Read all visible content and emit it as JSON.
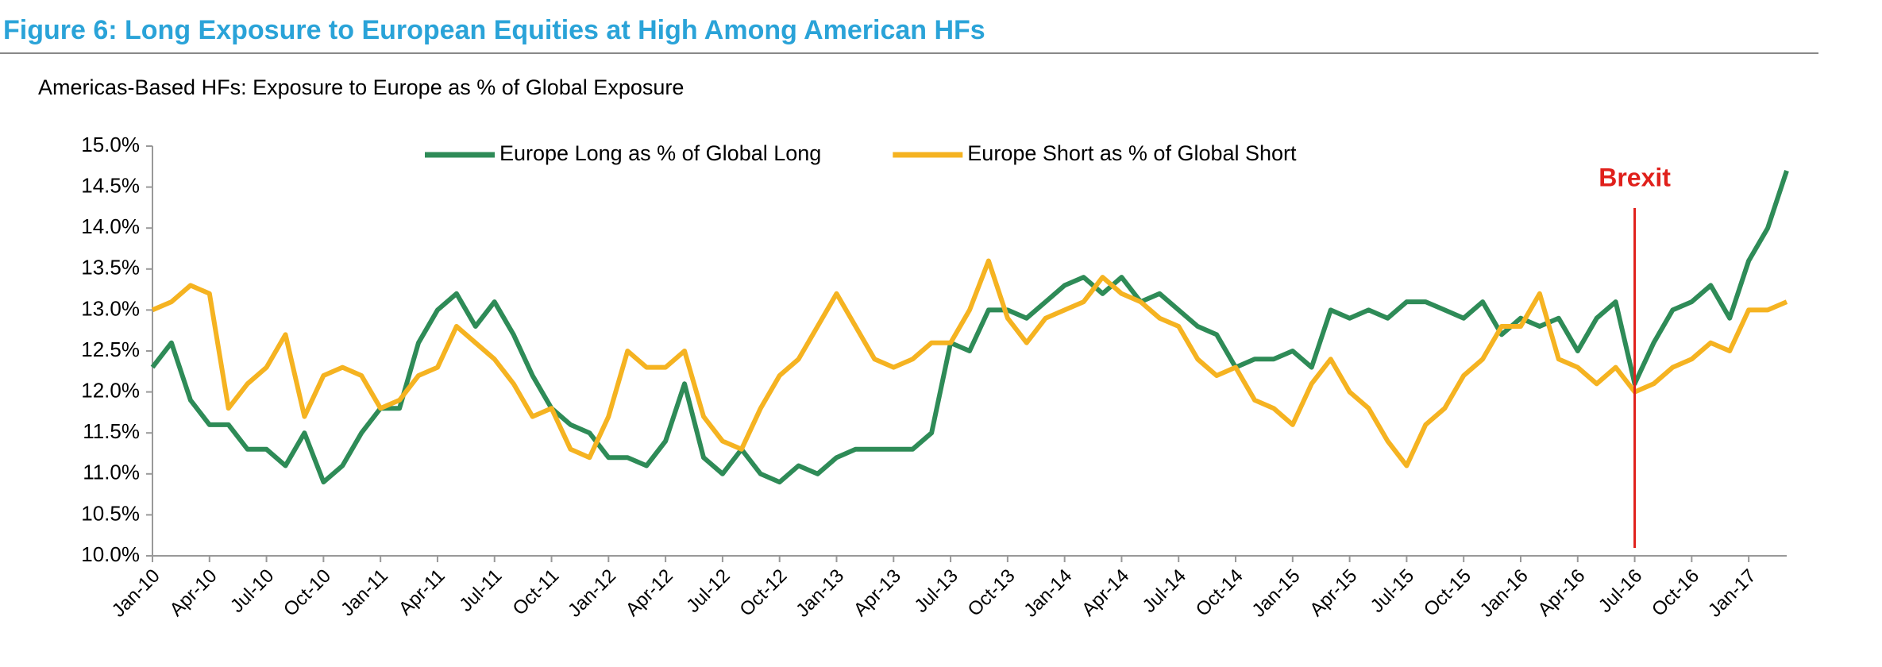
{
  "chart_data": {
    "type": "line",
    "title": "Figure 6: Long Exposure to European Equities at High Among American HFs",
    "subtitle": "Americas-Based HFs: Exposure to Europe as % of Global Exposure",
    "categories": [
      "Jan-10",
      null,
      null,
      "Apr-10",
      null,
      null,
      "Jul-10",
      null,
      null,
      "Oct-10",
      null,
      null,
      "Jan-11",
      null,
      null,
      "Apr-11",
      null,
      null,
      "Jul-11",
      null,
      null,
      "Oct-11",
      null,
      null,
      "Jan-12",
      null,
      null,
      "Apr-12",
      null,
      null,
      "Jul-12",
      null,
      null,
      "Oct-12",
      null,
      null,
      "Jan-13",
      null,
      null,
      "Apr-13",
      null,
      null,
      "Jul-13",
      null,
      null,
      "Oct-13",
      null,
      null,
      "Jan-14",
      null,
      null,
      "Apr-14",
      null,
      null,
      "Jul-14",
      null,
      null,
      "Oct-14",
      null,
      null,
      "Jan-15",
      null,
      null,
      "Apr-15",
      null,
      null,
      "Jul-15",
      null,
      null,
      "Oct-15",
      null,
      null,
      "Jan-16",
      null,
      null,
      "Apr-16",
      null,
      null,
      "Jul-16",
      null,
      null,
      "Oct-16",
      null,
      null,
      "Jan-17",
      null,
      null
    ],
    "series": [
      {
        "name": "Europe Long as % of Global Long",
        "color": "#2e8b57",
        "values": [
          12.3,
          12.6,
          11.9,
          11.6,
          11.6,
          11.3,
          11.3,
          11.1,
          11.5,
          10.9,
          11.1,
          11.5,
          11.8,
          11.8,
          12.6,
          13.0,
          13.2,
          12.8,
          13.1,
          12.7,
          12.2,
          11.8,
          11.6,
          11.5,
          11.2,
          11.2,
          11.1,
          11.4,
          12.1,
          11.2,
          11.0,
          11.3,
          11.0,
          10.9,
          11.1,
          11.0,
          11.2,
          11.3,
          11.3,
          11.3,
          11.3,
          11.5,
          12.6,
          12.5,
          13.0,
          13.0,
          12.9,
          13.1,
          13.3,
          13.4,
          13.2,
          13.4,
          13.1,
          13.2,
          13.0,
          12.8,
          12.7,
          12.3,
          12.4,
          12.4,
          12.5,
          12.3,
          13.0,
          12.9,
          13.0,
          12.9,
          13.1,
          13.1,
          13.0,
          12.9,
          13.1,
          12.7,
          12.9,
          12.8,
          12.9,
          12.5,
          12.9,
          13.1,
          12.1,
          12.6,
          13.0,
          13.1,
          13.3,
          12.9,
          13.6,
          14.0,
          14.7
        ]
      },
      {
        "name": "Europe Short as % of Global Short",
        "color": "#f5b321",
        "values": [
          13.0,
          13.1,
          13.3,
          13.2,
          11.8,
          12.1,
          12.3,
          12.7,
          11.7,
          12.2,
          12.3,
          12.2,
          11.8,
          11.9,
          12.2,
          12.3,
          12.8,
          12.6,
          12.4,
          12.1,
          11.7,
          11.8,
          11.3,
          11.2,
          11.7,
          12.5,
          12.3,
          12.3,
          12.5,
          11.7,
          11.4,
          11.3,
          11.8,
          12.2,
          12.4,
          12.8,
          13.2,
          12.8,
          12.4,
          12.3,
          12.4,
          12.6,
          12.6,
          13.0,
          13.6,
          12.9,
          12.6,
          12.9,
          13.0,
          13.1,
          13.4,
          13.2,
          13.1,
          12.9,
          12.8,
          12.4,
          12.2,
          12.3,
          11.9,
          11.8,
          11.6,
          12.1,
          12.4,
          12.0,
          11.8,
          11.4,
          11.1,
          11.6,
          11.8,
          12.2,
          12.4,
          12.8,
          12.8,
          13.2,
          12.4,
          12.3,
          12.1,
          12.3,
          12.0,
          12.1,
          12.3,
          12.4,
          12.6,
          12.5,
          13.0,
          13.0,
          13.1
        ]
      }
    ],
    "ylim": [
      10.0,
      15.0
    ],
    "yticks": [
      {
        "value": 10.0,
        "label": "10.0%"
      },
      {
        "value": 10.5,
        "label": "10.5%"
      },
      {
        "value": 11.0,
        "label": "11.0%"
      },
      {
        "value": 11.5,
        "label": "11.5%"
      },
      {
        "value": 12.0,
        "label": "12.0%"
      },
      {
        "value": 12.5,
        "label": "12.5%"
      },
      {
        "value": 13.0,
        "label": "13.0%"
      },
      {
        "value": 13.5,
        "label": "13.5%"
      },
      {
        "value": 14.0,
        "label": "14.0%"
      },
      {
        "value": 14.5,
        "label": "14.5%"
      },
      {
        "value": 15.0,
        "label": "15.0%"
      }
    ],
    "legend": "top",
    "annotations": [
      {
        "text": "Brexit",
        "category": "Jul-16",
        "color": "#e0201b"
      }
    ]
  }
}
